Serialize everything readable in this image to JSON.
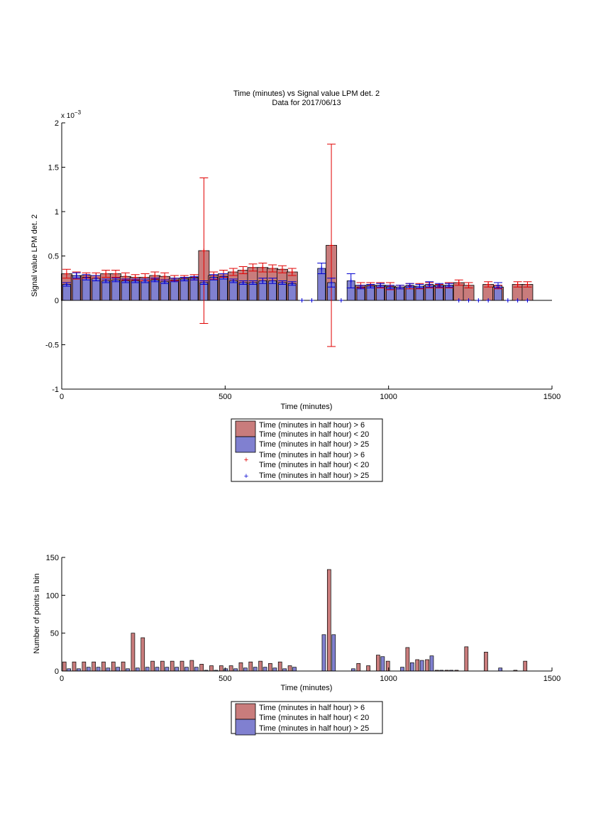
{
  "colors": {
    "red_bar": "#c97c7c",
    "blue_bar": "#8080d0",
    "red_err": "#e00000",
    "blue_err": "#0000d0"
  },
  "top": {
    "title_line1": "Time (minutes) vs Signal value LPM det. 2",
    "title_line2": "Data for 2017/06/13",
    "exponent": "x 10",
    "exponent_power": "−3",
    "xlabel": "Time (minutes)",
    "ylabel": "Signal value LPM det. 2",
    "legend": [
      "Time (minutes in half hour) > 6",
      "Time (minutes in half hour) < 20",
      "Time (minutes in half hour) > 25",
      "Time (minutes in half hour) > 6",
      "Time (minutes in half hour) < 20",
      "Time (minutes in half hour) > 25"
    ]
  },
  "bottom": {
    "xlabel": "Time (minutes)",
    "ylabel": "Number of points in bin",
    "legend": [
      "Time (minutes in half hour) > 6",
      "Time (minutes in half hour) < 20",
      "Time (minutes in half hour) > 25"
    ]
  },
  "chart_data": [
    {
      "type": "bar",
      "title": "Time (minutes) vs Signal value LPM det. 2\nData for 2017/06/13",
      "xlabel": "Time (minutes)",
      "ylabel": "Signal value LPM det. 2",
      "xlim": [
        0,
        1500
      ],
      "ylim": [
        -1,
        2
      ],
      "y_scale_note": "x 10^-3",
      "xticks": [
        0,
        500,
        1000,
        1500
      ],
      "yticks": [
        -1,
        -0.5,
        0,
        0.5,
        1,
        1.5,
        2
      ],
      "series": [
        {
          "name": "Time (minutes in half hour) > 6 / < 20",
          "x": [
            15,
            45,
            75,
            105,
            135,
            165,
            195,
            225,
            255,
            285,
            315,
            345,
            375,
            405,
            435,
            465,
            495,
            525,
            555,
            585,
            615,
            645,
            675,
            705,
            825,
            915,
            945,
            975,
            1005,
            1035,
            1065,
            1095,
            1125,
            1155,
            1185,
            1215,
            1245,
            1305,
            1335,
            1395,
            1425
          ],
          "values": [
            0.3,
            0.28,
            0.28,
            0.28,
            0.3,
            0.3,
            0.27,
            0.26,
            0.26,
            0.28,
            0.27,
            0.25,
            0.25,
            0.26,
            0.56,
            0.28,
            0.3,
            0.32,
            0.34,
            0.37,
            0.37,
            0.36,
            0.35,
            0.32,
            0.62,
            0.17,
            0.17,
            0.17,
            0.16,
            0.15,
            0.16,
            0.16,
            0.17,
            0.16,
            0.17,
            0.2,
            0.17,
            0.18,
            0.15,
            0.18,
            0.18
          ],
          "err": [
            0.05,
            0.04,
            0.03,
            0.03,
            0.04,
            0.04,
            0.04,
            0.03,
            0.04,
            0.04,
            0.04,
            0.03,
            0.03,
            0.03,
            0.82,
            0.04,
            0.04,
            0.04,
            0.04,
            0.04,
            0.05,
            0.04,
            0.04,
            0.04,
            1.14,
            0.03,
            0.03,
            0.03,
            0.04,
            0.02,
            0.03,
            0.03,
            0.03,
            0.02,
            0.03,
            0.03,
            0.03,
            0.03,
            0.02,
            0.03,
            0.03
          ]
        },
        {
          "name": "Time (minutes in half hour) > 25",
          "x": [
            15,
            45,
            75,
            105,
            135,
            165,
            195,
            225,
            255,
            285,
            315,
            345,
            375,
            405,
            435,
            465,
            495,
            525,
            555,
            585,
            615,
            645,
            675,
            705,
            735,
            765,
            795,
            825,
            855,
            885,
            915,
            945,
            975,
            1005,
            1035,
            1065,
            1095,
            1125,
            1155,
            1185,
            1215,
            1245,
            1275,
            1305,
            1335,
            1365,
            1395,
            1425
          ],
          "values": [
            0.18,
            0.28,
            0.26,
            0.25,
            0.22,
            0.23,
            0.22,
            0.22,
            0.22,
            0.23,
            0.21,
            0.23,
            0.24,
            0.25,
            0.2,
            0.26,
            0.27,
            0.22,
            0.2,
            0.2,
            0.22,
            0.22,
            0.2,
            0.19,
            0,
            0,
            0.36,
            0.2,
            0,
            0.22,
            0.15,
            0.16,
            0.17,
            0.15,
            0.15,
            0.17,
            0.16,
            0.18,
            0.17,
            0.17,
            0,
            0,
            0,
            0,
            0.17,
            0,
            0,
            0
          ],
          "err": [
            0.02,
            0.03,
            0.03,
            0.03,
            0.02,
            0.02,
            0.02,
            0.02,
            0.02,
            0.02,
            0.02,
            0.02,
            0.02,
            0.02,
            0.02,
            0.03,
            0.03,
            0.02,
            0.02,
            0.02,
            0.03,
            0.03,
            0.02,
            0.02,
            0,
            0,
            0.06,
            0.05,
            0,
            0.08,
            0.02,
            0.02,
            0.02,
            0.02,
            0.02,
            0.02,
            0.02,
            0.03,
            0.02,
            0.02,
            0,
            0,
            0,
            0,
            0.03,
            0,
            0,
            0
          ]
        }
      ]
    },
    {
      "type": "bar",
      "xlabel": "Time (minutes)",
      "ylabel": "Number of points in bin",
      "xlim": [
        0,
        1500
      ],
      "ylim": [
        0,
        150
      ],
      "xticks": [
        0,
        500,
        1000,
        1500
      ],
      "yticks": [
        0,
        50,
        100,
        150
      ],
      "series": [
        {
          "name": "Time (minutes in half hour) > 6 / < 20",
          "x": [
            8,
            38,
            68,
            98,
            128,
            158,
            188,
            218,
            248,
            278,
            308,
            338,
            368,
            398,
            428,
            458,
            488,
            518,
            548,
            578,
            608,
            638,
            668,
            698,
            818,
            908,
            938,
            968,
            998,
            1028,
            1058,
            1088,
            1118,
            1148,
            1178,
            1208,
            1238,
            1298,
            1328,
            1388,
            1418
          ],
          "values": [
            12,
            12,
            12,
            12,
            12,
            12,
            12,
            50,
            44,
            13,
            13,
            13,
            13,
            14,
            9,
            7,
            7,
            7,
            11,
            12,
            13,
            10,
            12,
            7,
            134,
            10,
            7,
            21,
            13,
            0,
            31,
            15,
            15,
            1,
            1,
            1,
            32,
            25,
            0,
            1,
            13
          ]
        },
        {
          "name": "Time (minutes in half hour) > 25",
          "x": [
            22,
            52,
            82,
            112,
            142,
            172,
            202,
            232,
            262,
            292,
            322,
            352,
            382,
            412,
            442,
            472,
            502,
            532,
            562,
            592,
            622,
            652,
            682,
            712,
            742,
            772,
            802,
            832,
            862,
            892,
            922,
            952,
            982,
            1012,
            1042,
            1072,
            1102,
            1132,
            1162,
            1192,
            1222,
            1252,
            1282,
            1312,
            1342,
            1372,
            1402,
            1432
          ],
          "values": [
            3,
            3,
            5,
            5,
            4,
            5,
            3,
            4,
            5,
            5,
            5,
            5,
            5,
            5,
            1,
            1,
            3,
            3,
            4,
            5,
            5,
            4,
            3,
            5,
            0,
            0,
            48,
            48,
            0,
            3,
            0,
            0,
            19,
            0,
            5,
            11,
            14,
            20,
            1,
            1,
            0,
            0,
            0,
            0,
            4,
            0,
            0,
            0
          ]
        }
      ]
    }
  ]
}
